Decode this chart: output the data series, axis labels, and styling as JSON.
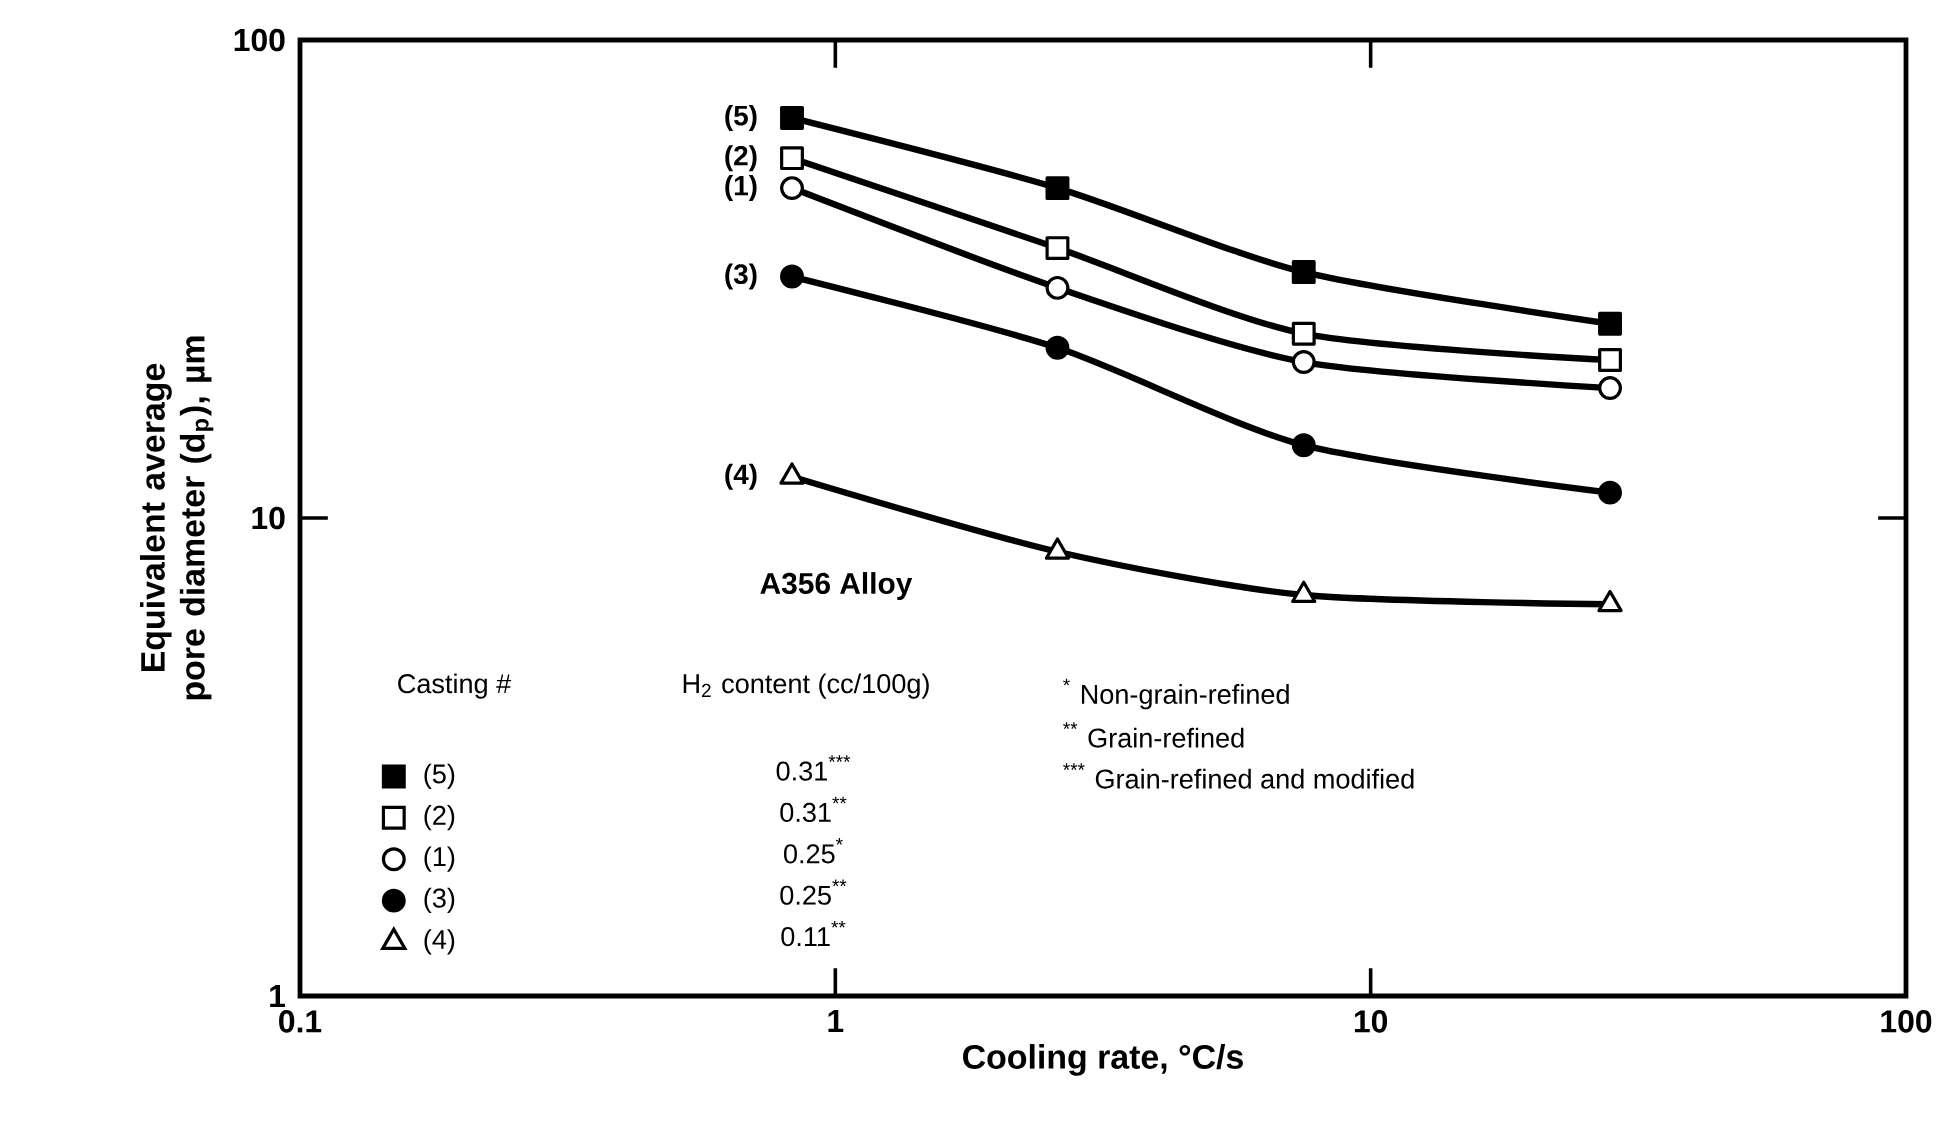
{
  "chart_data": {
    "type": "line",
    "xlabel": "Cooling rate, °C/s",
    "ylabel": "Equivalent average pore diameter (d$_{p}$), µm",
    "x": [
      0.83,
      2.6,
      7.5,
      28
    ],
    "series": [
      {
        "name": "(5)",
        "color": "#000000",
        "colors": [
          "#000000",
          "#000000",
          "#000000",
          "#000000"
        ],
        "marker": "square",
        "values": [
          68.7,
          49,
          32.7,
          25.5
        ]
      },
      {
        "name": "(2)",
        "color": "#000000",
        "colors": [
          "#ffffff",
          "#ffffff",
          "#ffffff",
          "#ffffff"
        ],
        "marker": "square",
        "values": [
          56.6,
          36.7,
          24.3,
          21.4
        ]
      },
      {
        "name": "(1)",
        "color": "#000000",
        "colors": [
          "#ffffff",
          "#ffffff",
          "#ffffff",
          "#ffffff"
        ],
        "marker": "circle",
        "values": [
          49,
          30.3,
          21.2,
          18.7
        ]
      },
      {
        "name": "(3)",
        "color": "#000000",
        "colors": [
          "#000000",
          "#000000",
          "#000000",
          "#000000"
        ],
        "marker": "circle",
        "values": [
          32,
          22.7,
          14.2,
          11.3
        ]
      },
      {
        "name": "(4)",
        "color": "#000000",
        "colors": [
          "#ffffff",
          "#ffffff",
          "#ffffff",
          "#ffffff"
        ],
        "marker": "triangle",
        "values": [
          12.2,
          8.5,
          6.9,
          6.6
        ]
      }
    ],
    "log": "xy",
    "xlim": [
      0.1,
      100
    ],
    "xticks": [
      0.1,
      1,
      10,
      100
    ],
    "ylim": [
      1,
      100
    ],
    "yticks": [
      1,
      10,
      100
    ],
    "legend": "bottom left",
    "legend_title": "Casting #",
    "grid": false,
    "annotations": [
      "A356 Alloy",
      "H$_{2}$ content (cc/100g)",
      "0.31$^{***}$",
      "0.31$^{**}$",
      "0.25$^{*}$",
      "0.25$^{**}$",
      "0.11$^{**}$",
      "$^{*}$ Non-grain-refined",
      "$^{**}$ Grain-refined",
      "$^{***}$ Grain-refined and modified"
    ]
  }
}
